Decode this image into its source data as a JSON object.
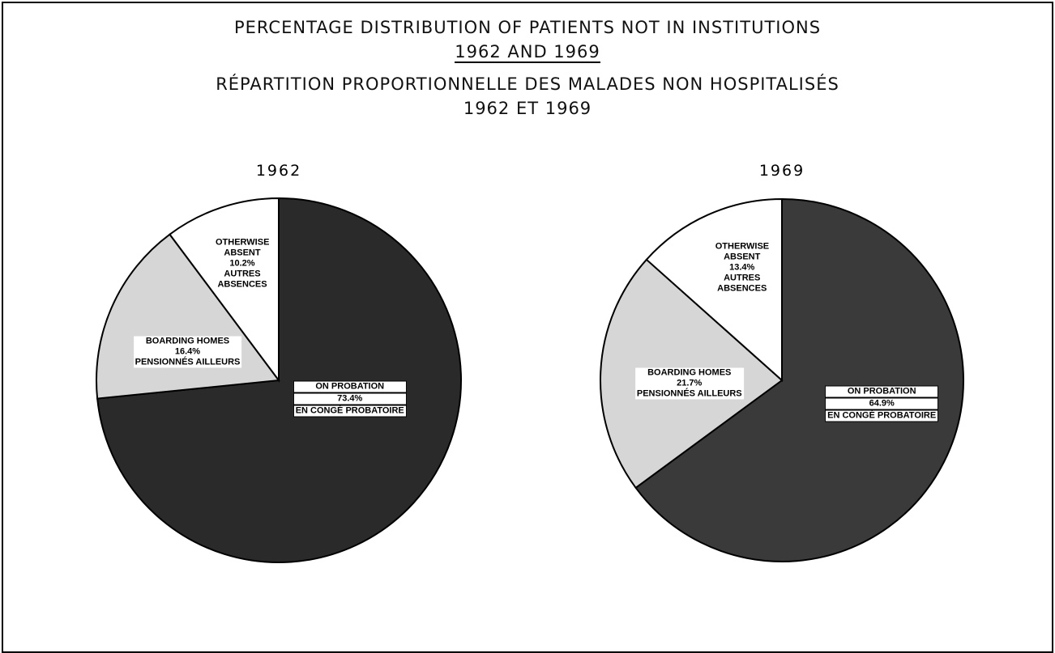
{
  "header": {
    "title_lines": [
      "PERCENTAGE DISTRIBUTION OF PATIENTS NOT IN INSTITUTIONS",
      "1962 AND 1969",
      "RÉPARTITION PROPORTIONNELLE DES MALADES NON HOSPITALISÉS",
      "1962 ET 1969"
    ]
  },
  "chart_data": [
    {
      "type": "pie",
      "title": "1962",
      "categories": [
        "ON PROBATION",
        "BOARDING HOMES",
        "OTHERWISE ABSENT"
      ],
      "categories_fr": [
        "EN CONGÉ PROBATOIRE",
        "PENSIONNÉS AILLEURS",
        "AUTRES ABSENCES"
      ],
      "values": [
        73.4,
        16.4,
        10.2
      ],
      "value_labels": [
        "73.4%",
        "16.4%",
        "10.2%"
      ],
      "colors": [
        "#2a2a2a",
        "#d6d6d6",
        "#ffffff"
      ]
    },
    {
      "type": "pie",
      "title": "1969",
      "categories": [
        "ON PROBATION",
        "BOARDING HOMES",
        "OTHERWISE ABSENT"
      ],
      "categories_fr": [
        "EN CONGÉ PROBATOIRE",
        "PENSIONNÉS AILLEURS",
        "AUTRES ABSENCES"
      ],
      "values": [
        64.9,
        21.7,
        13.4
      ],
      "value_labels": [
        "64.9%",
        "21.7%",
        "13.4%"
      ],
      "colors": [
        "#3a3a3a",
        "#d6d6d6",
        "#ffffff"
      ]
    }
  ]
}
